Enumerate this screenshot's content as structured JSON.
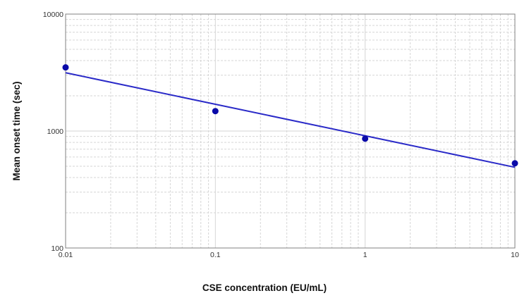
{
  "chart_data": {
    "type": "scatter",
    "title": "",
    "xlabel": "CSE concentration (EU/mL)",
    "ylabel": "Mean onset time (sec)",
    "xscale": "log",
    "yscale": "log",
    "xlim": [
      0.01,
      10
    ],
    "ylim": [
      100,
      10000
    ],
    "grid": true,
    "x_ticks": [
      {
        "value": 0.01,
        "label": "0.01"
      },
      {
        "value": 0.1,
        "label": "0.1"
      },
      {
        "value": 1,
        "label": "1"
      },
      {
        "value": 10,
        "label": "10"
      }
    ],
    "y_ticks": [
      {
        "value": 100,
        "label": "100"
      },
      {
        "value": 1000,
        "label": "1000"
      },
      {
        "value": 10000,
        "label": "10000"
      }
    ],
    "series": [
      {
        "type": "scatter",
        "x": [
          0.01,
          0.1,
          1,
          10
        ],
        "y": [
          3500,
          1480,
          860,
          530
        ]
      }
    ],
    "fit_line": {
      "x": [
        0.01,
        10
      ],
      "y": [
        3150,
        490
      ]
    },
    "colors": {
      "points": "#0a0aa8",
      "fit_line": "#2a2ac8",
      "grid": "#d6d6d6",
      "axis": "#808080"
    }
  }
}
